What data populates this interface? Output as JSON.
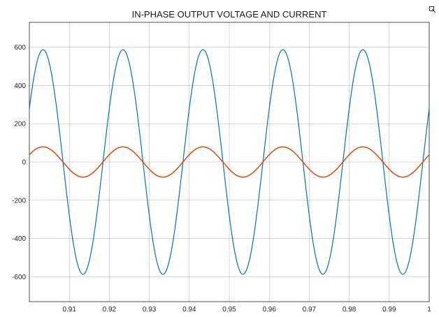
{
  "chart_data": {
    "type": "line",
    "title": "IN-PHASE OUTPUT VOLTAGE AND CURRENT",
    "xlabel": "",
    "ylabel": "",
    "xlim": [
      0.9,
      1.0
    ],
    "ylim": [
      -730,
      730
    ],
    "grid": true,
    "xticks": [
      0.91,
      0.92,
      0.93,
      0.94,
      0.95,
      0.96,
      0.97,
      0.98,
      0.99,
      1.0
    ],
    "xtick_labels": [
      "0.91",
      "0.92",
      "0.93",
      "0.94",
      "0.95",
      "0.96",
      "0.97",
      "0.98",
      "0.99",
      "1"
    ],
    "yticks": [
      -600,
      -400,
      -200,
      0,
      200,
      400,
      600
    ],
    "ytick_labels": [
      "-600",
      "-400",
      "-200",
      "0",
      "200",
      "400",
      "600"
    ],
    "series": [
      {
        "color": "#0072BD",
        "frequency_hz": 50,
        "amplitude": 587,
        "x": [
          0.9,
          0.9025,
          0.905,
          0.9075,
          0.91,
          0.9125,
          0.915,
          0.9175,
          0.92,
          0.9225,
          0.925,
          0.9275,
          0.93,
          0.9325,
          0.935,
          0.9375,
          0.94,
          0.9425,
          0.945,
          0.9475,
          0.95,
          0.9525,
          0.955,
          0.9575,
          0.96,
          0.9625,
          0.965,
          0.9675,
          0.97,
          0.9725,
          0.975,
          0.9775,
          0.98,
          0.9825,
          0.985,
          0.9875,
          0.99,
          0.9925,
          0.995,
          0.9975,
          1.0
        ],
        "y": [
          280,
          575,
          340,
          -175,
          -540,
          -560,
          -235,
          280,
          575,
          340,
          -175,
          -540,
          -560,
          -235,
          280,
          575,
          340,
          -175,
          -540,
          -560,
          -235,
          280,
          575,
          340,
          -175,
          -540,
          -560,
          -235,
          280,
          575,
          340,
          -175,
          -540,
          -560,
          -235,
          280,
          575,
          340,
          -175,
          -540,
          -560
        ]
      },
      {
        "color": "#D95319",
        "frequency_hz": 50,
        "amplitude": 79,
        "x": [
          0.9,
          0.9025,
          0.905,
          0.9075,
          0.91,
          0.9125,
          0.915,
          0.9175,
          0.92,
          0.9225,
          0.925,
          0.9275,
          0.93,
          0.9325,
          0.935,
          0.9375,
          0.94,
          0.9425,
          0.945,
          0.9475,
          0.95,
          0.9525,
          0.955,
          0.9575,
          0.96,
          0.9625,
          0.965,
          0.9675,
          0.97,
          0.9725,
          0.975,
          0.9775,
          0.98,
          0.9825,
          0.985,
          0.9875,
          0.99,
          0.9925,
          0.995,
          0.9975,
          1.0
        ],
        "y": [
          38,
          77,
          46,
          -23,
          -72,
          -75,
          -31,
          38,
          77,
          46,
          -23,
          -72,
          -75,
          -31,
          38,
          77,
          46,
          -23,
          -72,
          -75,
          -31,
          38,
          77,
          46,
          -23,
          -72,
          -75,
          -31,
          38,
          77,
          46,
          -23,
          -72,
          -75,
          -31,
          38,
          77,
          46,
          -23,
          -72,
          -75
        ]
      }
    ]
  },
  "icons": {
    "corner": "figure-menu-icon"
  }
}
